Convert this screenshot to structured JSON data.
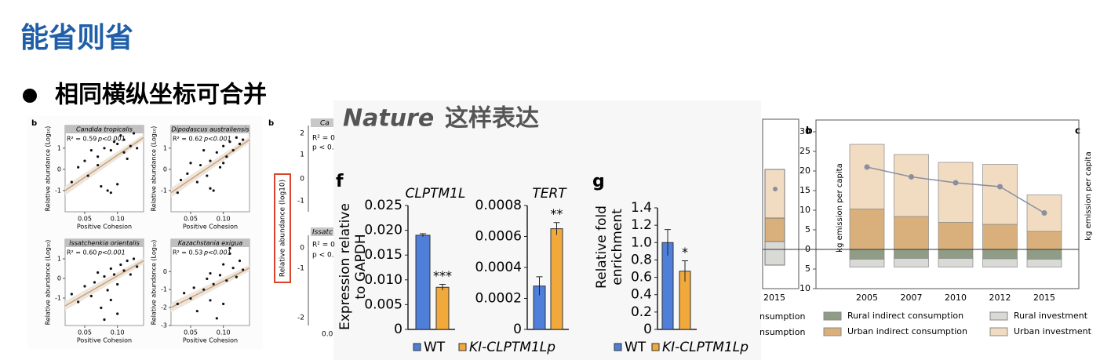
{
  "header": {
    "title": "能省则省"
  },
  "bullet": "相同横纵坐标可合并",
  "caption": {
    "italic": "Nature",
    "text": "这样表达"
  },
  "scatter_figure": {
    "panel_label": "b",
    "y_label": "Relative abundance (Log₁₀)",
    "x_label": "Positive Cohesion"
  },
  "cropped_figure": {
    "panel_label": "b",
    "y_label": "Relative abundance (log10)",
    "ticks_top": [
      "2",
      "1",
      "0",
      "-1"
    ],
    "ticks_bottom": [
      "0",
      "-1",
      "-2"
    ],
    "texts": [
      "Ca",
      "R² = 0",
      "p < 0.",
      "Issatc",
      "R² = 0",
      "p < 0.",
      "0.0"
    ]
  },
  "figure_f": {
    "panel_label": "f",
    "y_label_lines": [
      "Expression relative",
      "to GAPDH"
    ],
    "legend": [
      {
        "name": "WT",
        "color": "#4f7fd9"
      },
      {
        "name": "KI-CLPTM1Lp",
        "color": "#f2a93b"
      }
    ]
  },
  "figure_g": {
    "panel_label": "g",
    "y_label_lines": [
      "Relative fold",
      "enrichment"
    ],
    "legend": [
      {
        "name": "WT",
        "color": "#4f7fd9"
      },
      {
        "name": "KI-CLPTM1Lp",
        "color": "#f2a93b"
      }
    ]
  },
  "emission_figure": {
    "panel_labels": [
      "b",
      "c"
    ],
    "y_label": "kg emission per capita",
    "partial_x_label": "2015",
    "legend_fragments": [
      "nsumption",
      "nsumption"
    ]
  },
  "chart_data": [
    {
      "type": "scatter",
      "title": "Candida tropicalis",
      "r2": "R² = 0.59",
      "p": "p<0.001",
      "color": "#111111",
      "fit_color": "#c8a27a",
      "x": [
        0.03,
        0.04,
        0.05,
        0.055,
        0.06,
        0.07,
        0.075,
        0.08,
        0.085,
        0.09,
        0.095,
        0.1,
        0.1,
        0.105,
        0.11,
        0.115,
        0.12,
        0.125,
        0.13,
        0.09,
        0.07,
        0.11
      ],
      "y": [
        -0.6,
        0.1,
        0.4,
        -0.3,
        0.9,
        0.6,
        -0.8,
        1.0,
        -1.0,
        0.9,
        1.3,
        1.2,
        -0.7,
        1.6,
        1.4,
        0.5,
        1.1,
        1.7,
        1.0,
        -1.1,
        0.2,
        0.8
      ],
      "fit": [
        -1.0,
        1.5
      ],
      "xlim": [
        0.02,
        0.14
      ],
      "ylim": [
        -2,
        2.07
      ],
      "xticks": [
        0.05,
        {
          "value": 0.1,
          "label": "0.10"
        }
      ],
      "yticks": [
        -1,
        0,
        1
      ]
    },
    {
      "type": "scatter",
      "title": "Dipodascus australiensis",
      "r2": "R² = 0.62",
      "p": "p<0.001",
      "color": "#111111",
      "fit_color": "#c8a27a",
      "x": [
        0.03,
        0.035,
        0.045,
        0.05,
        0.06,
        0.065,
        0.07,
        0.075,
        0.08,
        0.085,
        0.09,
        0.095,
        0.1,
        0.105,
        0.11,
        0.115,
        0.12,
        0.125,
        0.13,
        0.08,
        0.1
      ],
      "y": [
        -1.1,
        -0.5,
        -0.2,
        0.3,
        -0.6,
        0.2,
        0.9,
        -0.3,
        0.4,
        -1.0,
        0.8,
        0.1,
        1.1,
        0.6,
        1.3,
        0.9,
        1.5,
        1.2,
        1.4,
        -0.9,
        0.3
      ],
      "fit": [
        -1.1,
        1.4
      ],
      "xlim": [
        0.02,
        0.14
      ],
      "ylim": [
        -2,
        2.07
      ],
      "xticks": [
        0.05,
        {
          "value": 0.1,
          "label": "0.10"
        }
      ],
      "yticks": [
        -1,
        0,
        1
      ]
    },
    {
      "type": "scatter",
      "title": "Issatchenkia orientalis",
      "r2": "R² = 0.60",
      "p": "p<0.001",
      "color": "#111111",
      "fit_color": "#c8a27a",
      "x": [
        0.03,
        0.04,
        0.05,
        0.06,
        0.065,
        0.07,
        0.075,
        0.08,
        0.085,
        0.09,
        0.095,
        0.1,
        0.105,
        0.11,
        0.115,
        0.12,
        0.125,
        0.13,
        0.09,
        0.1,
        0.08
      ],
      "y": [
        -0.8,
        -1.2,
        -0.4,
        -0.9,
        -0.2,
        0.3,
        -1.5,
        0.1,
        -0.6,
        0.5,
        0.2,
        -1.8,
        0.7,
        0.4,
        0.9,
        0.2,
        1.0,
        0.6,
        -1.1,
        -0.3,
        -2.1
      ],
      "fit": [
        -1.4,
        0.9
      ],
      "xlim": [
        0.02,
        0.14
      ],
      "ylim": [
        -2.4,
        2.0
      ],
      "xticks": [
        0.05,
        {
          "value": 0.1,
          "label": "0.10"
        }
      ],
      "yticks": [
        -1,
        0,
        1
      ]
    },
    {
      "type": "scatter",
      "title": "Kazachstania exigua",
      "r2": "R² = 0.53",
      "p": "p<0.001",
      "color": "#111111",
      "fit_color": "#c8a27a",
      "x": [
        0.03,
        0.04,
        0.05,
        0.055,
        0.06,
        0.07,
        0.075,
        0.08,
        0.085,
        0.09,
        0.095,
        0.1,
        0.105,
        0.11,
        0.115,
        0.12,
        0.125,
        0.13,
        0.1,
        0.08,
        0.11
      ],
      "y": [
        -1.8,
        -1.2,
        -1.5,
        -0.9,
        -2.2,
        -1.0,
        -0.4,
        -1.6,
        -0.7,
        -2.6,
        -0.2,
        0.4,
        -0.5,
        1.0,
        0.2,
        -0.3,
        0.6,
        0.1,
        -1.8,
        -0.1,
        1.3
      ],
      "fit": [
        -2.0,
        0.2
      ],
      "xlim": [
        0.02,
        0.14
      ],
      "ylim": [
        -3,
        1.8
      ],
      "xticks": [
        0.05,
        {
          "value": 0.1,
          "label": "0.10"
        }
      ],
      "yticks": [
        -3,
        -2,
        -1,
        0
      ]
    },
    {
      "type": "bar",
      "title": "CLPTM1L",
      "values": [
        0.019,
        0.0085
      ],
      "errors": [
        0.0003,
        0.0006
      ],
      "significance": "***",
      "ylim": [
        0,
        0.025
      ],
      "yticks": [
        0,
        0.005,
        {
          "value": 0.01,
          "label": "0.010"
        },
        0.015,
        {
          "value": 0.02,
          "label": "0.020"
        },
        0.025
      ]
    },
    {
      "type": "bar",
      "title": "TERT",
      "values": [
        0.00028,
        0.00065
      ],
      "errors": [
        6e-05,
        4e-05
      ],
      "significance": "**",
      "ylim": [
        0,
        0.0008
      ],
      "yticks": [
        0,
        0.0002,
        0.0004,
        0.0006,
        0.0008
      ]
    },
    {
      "type": "bar",
      "values": [
        1.0,
        0.67
      ],
      "errors": [
        0.15,
        0.12
      ],
      "significance": "*",
      "ylim": [
        0,
        1.4
      ],
      "yticks": [
        0,
        0.2,
        0.4,
        0.6,
        0.8,
        {
          "value": 1,
          "label": "1.0"
        },
        1.2,
        1.4
      ]
    },
    {
      "type": "stacked-bar",
      "categories": [
        "2005",
        "2007",
        "2010",
        "2012",
        "2015"
      ],
      "series": [
        {
          "name": "Rural indirect consumption",
          "color": "#8f9c86",
          "values": [
            -2.5,
            -2.3,
            -2.3,
            -2.4,
            -2.5
          ]
        },
        {
          "name": "Rural investment",
          "color": "#d9d9d6",
          "values": [
            -2.0,
            -2.2,
            -2.2,
            -2.1,
            -2.0
          ]
        },
        {
          "name": "Urban indirect consumption",
          "color": "#d9b07c",
          "values": [
            10.3,
            8.4,
            6.9,
            6.4,
            4.6
          ]
        },
        {
          "name": "Urban investment",
          "color": "#f1dcc1",
          "values": [
            16.5,
            15.8,
            15.3,
            15.3,
            9.3
          ]
        }
      ],
      "line": {
        "color": "#8a8fa0",
        "values": [
          21,
          18.5,
          17,
          16,
          9.3
        ]
      },
      "ylim": [
        -10,
        33
      ],
      "yticks": [
        {
          "value": -10,
          "label": "10"
        },
        {
          "value": -5,
          "label": "5"
        },
        0,
        5,
        10,
        15,
        20,
        25,
        30
      ]
    }
  ]
}
